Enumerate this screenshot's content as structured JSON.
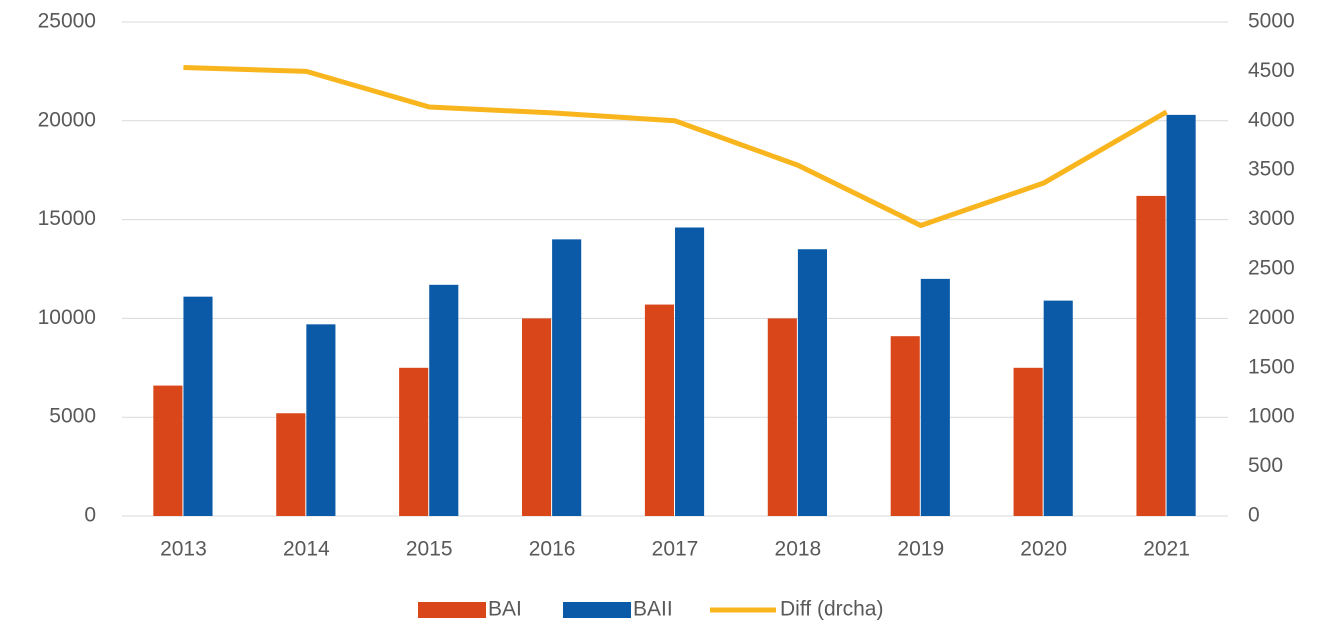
{
  "chart_data": {
    "type": "bar",
    "categories": [
      "2013",
      "2014",
      "2015",
      "2016",
      "2017",
      "2018",
      "2019",
      "2020",
      "2021"
    ],
    "series": [
      {
        "name": "BAI",
        "color": "#d9461a",
        "values": [
          6600,
          5200,
          7500,
          10000,
          10700,
          10000,
          9100,
          7500,
          16200
        ]
      },
      {
        "name": "BAII",
        "color": "#0a5aa8",
        "values": [
          11100,
          9700,
          11700,
          14000,
          14600,
          13500,
          12000,
          10900,
          20300
        ]
      },
      {
        "name": "Diff (drcha)",
        "color": "#f8b51d",
        "type": "line",
        "axis": "y2",
        "values": [
          4540,
          4500,
          4140,
          4080,
          4000,
          3550,
          2940,
          3370,
          4090
        ]
      }
    ],
    "ylim": [
      0,
      25000
    ],
    "yticks": [
      0,
      5000,
      10000,
      15000,
      20000,
      25000
    ],
    "y2lim": [
      0,
      5000
    ],
    "y2ticks": [
      0,
      500,
      1000,
      1500,
      2000,
      2500,
      3000,
      3500,
      4000,
      4500,
      5000
    ],
    "grid": true,
    "legend": "bottom"
  }
}
